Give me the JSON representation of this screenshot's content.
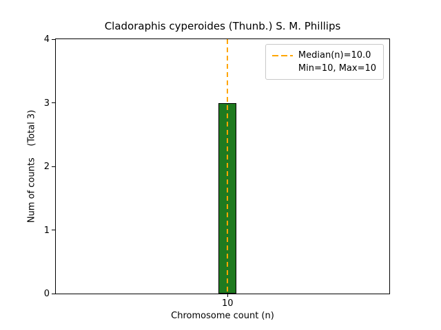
{
  "chart_data": {
    "type": "bar",
    "title": "Cladoraphis cyperoides (Thunb.) S. M. Phillips",
    "xlabel": "Chromosome count (n)",
    "ylabel": "Num of counts    (Total 3)",
    "x": [
      10
    ],
    "values": [
      3
    ],
    "total_counts": 3,
    "xticks": [
      "10"
    ],
    "yticks": [
      0,
      1,
      2,
      3,
      4
    ],
    "ylim": [
      0,
      4
    ],
    "median": 10.0,
    "min": 10,
    "max": 10,
    "grid": false,
    "bar_color": "#1f7a1f",
    "bar_edge_color": "#000000",
    "median_line_color": "#FFA500",
    "legend": {
      "position": "upper right",
      "entries": [
        {
          "label": "Median(n)=10.0",
          "marker": "dashed-line",
          "color": "#FFA500"
        },
        {
          "label": "Min=10, Max=10",
          "marker": "none"
        }
      ]
    }
  }
}
